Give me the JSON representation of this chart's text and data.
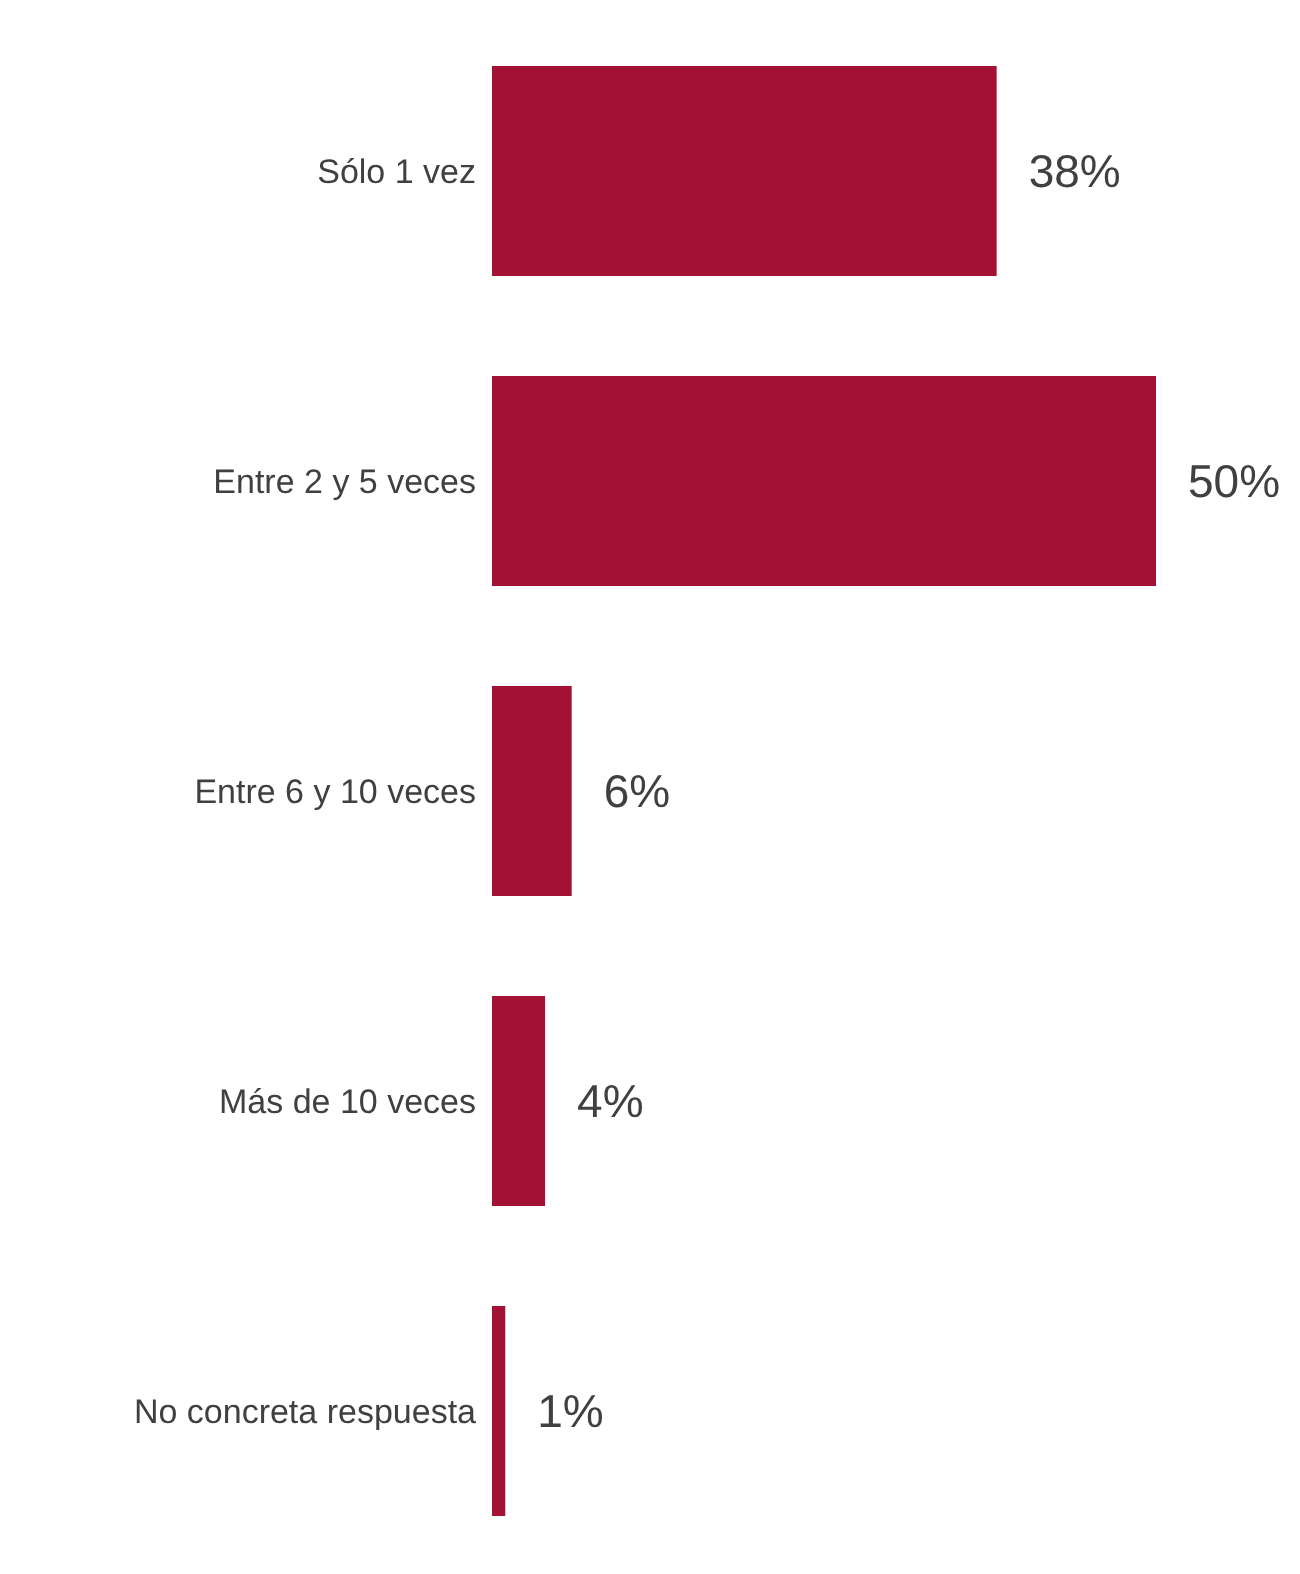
{
  "chart_data": {
    "type": "bar",
    "orientation": "horizontal",
    "categories": [
      "Sólo 1 vez",
      "Entre 2 y 5 veces",
      "Entre 6 y 10 veces",
      "Más de 10 veces",
      "No concreta respuesta"
    ],
    "values": [
      38,
      50,
      6,
      4,
      1
    ],
    "value_labels": [
      "38%",
      "50%",
      "6%",
      "4%",
      "1%"
    ],
    "color": "#a31234"
  }
}
